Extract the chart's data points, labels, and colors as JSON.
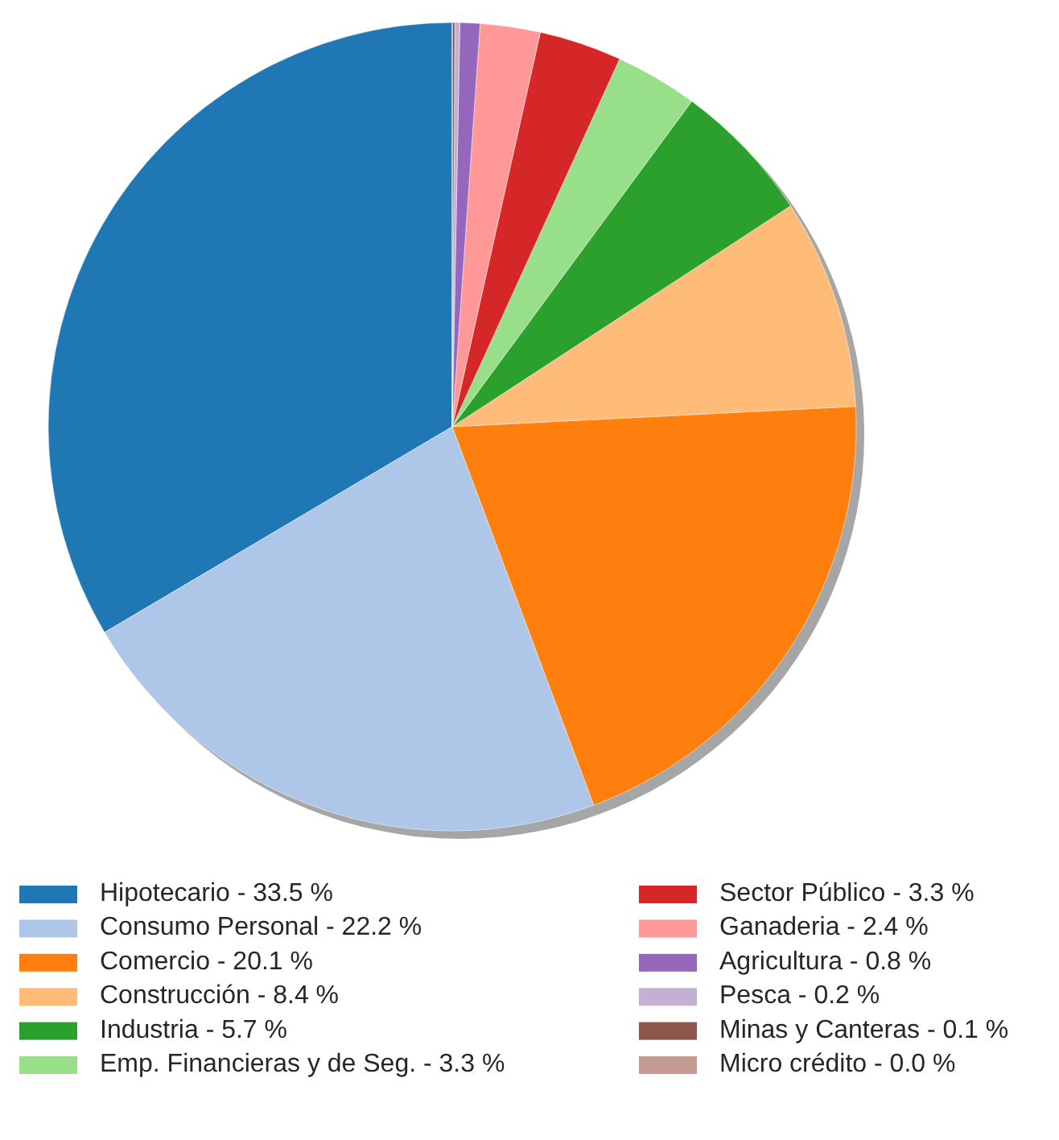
{
  "chart_data": {
    "type": "pie",
    "categories": [
      "Hipotecario - 33.5 %",
      "Consumo Personal - 22.2 %",
      "Comercio - 20.1 %",
      "Construcción - 8.4 %",
      "Industria - 5.7 %",
      "Emp. Financieras y de Seg. - 3.3 %",
      "Sector Público - 3.3 %",
      "Ganaderia - 2.4 %",
      "Agricultura - 0.8 %",
      "Pesca - 0.2 %",
      "Minas y Canteras - 0.1 %",
      "Micro crédito - 0.0 %"
    ],
    "values": [
      33.5,
      22.2,
      20.1,
      8.4,
      5.7,
      3.3,
      3.3,
      2.4,
      0.8,
      0.2,
      0.1,
      0.0
    ],
    "colors": [
      "#1f77b4",
      "#aec7e8",
      "#ff7f0e",
      "#ffbb78",
      "#2ca02c",
      "#98df8a",
      "#d62728",
      "#ff9896",
      "#9467bd",
      "#c5b0d5",
      "#8c564b",
      "#c49c94"
    ],
    "legend": "bottom"
  }
}
